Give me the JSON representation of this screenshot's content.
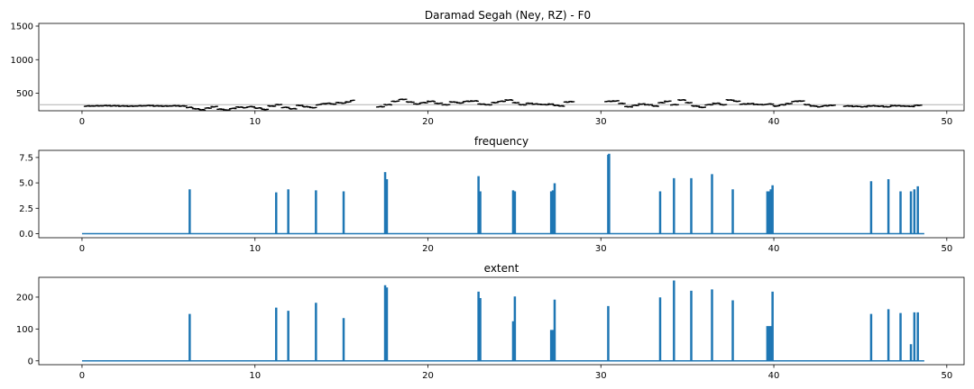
{
  "chart_data": [
    {
      "type": "scatter",
      "title": "Daramad Segah (Ney, RZ) - F0",
      "xlabel": "",
      "ylabel": "",
      "xlim": [
        -2.5,
        51
      ],
      "ylim": [
        240,
        1540
      ],
      "xticks": [
        0,
        10,
        20,
        30,
        40,
        50
      ],
      "yticks": [
        500,
        1000,
        1500
      ],
      "reference_line": 330,
      "colors": {
        "points": "#000000",
        "reference_line": "#b0b0b0"
      },
      "segments": [
        {
          "x_start": 0.1,
          "x_end": 6.0,
          "values": [
            310,
            312,
            315,
            313,
            310,
            308,
            312,
            316,
            311,
            309,
            313,
            310
          ]
        },
        {
          "x_start": 6.0,
          "x_end": 9.5,
          "values": [
            290,
            270,
            255,
            280,
            300,
            265,
            250,
            275,
            295,
            285
          ]
        },
        {
          "x_start": 9.5,
          "x_end": 13.5,
          "values": [
            300,
            280,
            260,
            310,
            330,
            290,
            270,
            320,
            300,
            285
          ]
        },
        {
          "x_start": 13.5,
          "x_end": 15.7,
          "values": [
            330,
            345,
            350,
            340,
            360,
            355,
            370,
            395
          ]
        },
        {
          "x_start": 17.0,
          "x_end": 22.0,
          "values": [
            300,
            330,
            380,
            410,
            370,
            340,
            360,
            380,
            350,
            330,
            370,
            355
          ]
        },
        {
          "x_start": 22.0,
          "x_end": 26.0,
          "values": [
            380,
            385,
            340,
            330,
            360,
            380,
            400,
            360,
            330,
            350
          ]
        },
        {
          "x_start": 26.0,
          "x_end": 28.4,
          "values": [
            340,
            335,
            330,
            340,
            320,
            310,
            370,
            375
          ]
        },
        {
          "x_start": 30.2,
          "x_end": 34.0,
          "values": [
            380,
            385,
            350,
            300,
            320,
            340,
            330,
            310,
            360,
            380
          ]
        },
        {
          "x_start": 34.0,
          "x_end": 38.0,
          "values": [
            330,
            400,
            360,
            310,
            290,
            330,
            350,
            330,
            400,
            380
          ]
        },
        {
          "x_start": 38.0,
          "x_end": 41.0,
          "values": [
            340,
            345,
            335,
            330,
            340,
            310,
            330,
            345
          ]
        },
        {
          "x_start": 41.0,
          "x_end": 43.5,
          "values": [
            380,
            385,
            330,
            310,
            300,
            315,
            320
          ]
        },
        {
          "x_start": 44.0,
          "x_end": 48.5,
          "values": [
            310,
            305,
            300,
            312,
            308,
            300,
            315,
            310,
            305,
            320
          ]
        }
      ]
    },
    {
      "type": "line",
      "title": "frequency",
      "xlabel": "",
      "ylabel": "",
      "xlim": [
        -2.5,
        51
      ],
      "ylim": [
        -0.4,
        8.2
      ],
      "xticks": [
        0,
        10,
        20,
        30,
        40,
        50
      ],
      "yticks": [
        0.0,
        2.5,
        5.0,
        7.5
      ],
      "ytick_labels": [
        "0.0",
        "2.5",
        "5.0",
        "7.5"
      ],
      "baseline": 0,
      "x_end": 48.7,
      "color": "#1f77b4",
      "peaks": [
        {
          "x": 6.2,
          "value": 4.3
        },
        {
          "x": 11.2,
          "value": 4.0
        },
        {
          "x": 11.9,
          "value": 4.3
        },
        {
          "x": 13.5,
          "value": 4.2
        },
        {
          "x": 15.1,
          "value": 4.1
        },
        {
          "x": 17.5,
          "value": 6.0
        },
        {
          "x": 17.6,
          "value": 5.3
        },
        {
          "x": 22.9,
          "value": 5.6
        },
        {
          "x": 23.0,
          "value": 4.1
        },
        {
          "x": 24.9,
          "value": 4.2
        },
        {
          "x": 25.0,
          "value": 4.1
        },
        {
          "x": 27.1,
          "value": 4.1
        },
        {
          "x": 27.2,
          "value": 4.2
        },
        {
          "x": 27.3,
          "value": 4.9
        },
        {
          "x": 30.4,
          "value": 7.7
        },
        {
          "x": 30.45,
          "value": 7.8
        },
        {
          "x": 33.4,
          "value": 4.1
        },
        {
          "x": 34.2,
          "value": 5.4
        },
        {
          "x": 35.2,
          "value": 5.4
        },
        {
          "x": 36.4,
          "value": 5.8
        },
        {
          "x": 37.6,
          "value": 4.3
        },
        {
          "x": 39.6,
          "value": 4.1
        },
        {
          "x": 39.7,
          "value": 4.1
        },
        {
          "x": 39.8,
          "value": 4.3
        },
        {
          "x": 39.9,
          "value": 4.7
        },
        {
          "x": 45.6,
          "value": 5.1
        },
        {
          "x": 46.6,
          "value": 5.3
        },
        {
          "x": 47.3,
          "value": 4.1
        },
        {
          "x": 47.9,
          "value": 4.1
        },
        {
          "x": 48.1,
          "value": 4.3
        },
        {
          "x": 48.3,
          "value": 4.6
        }
      ]
    },
    {
      "type": "line",
      "title": "extent",
      "xlabel": "",
      "ylabel": "",
      "xlim": [
        -2.5,
        51
      ],
      "ylim": [
        -12,
        262
      ],
      "xticks": [
        0,
        10,
        20,
        30,
        40,
        50
      ],
      "yticks": [
        0,
        100,
        200
      ],
      "ytick_labels": [
        "0",
        "100",
        "200"
      ],
      "baseline": 0,
      "x_end": 48.7,
      "color": "#1f77b4",
      "peaks": [
        {
          "x": 6.2,
          "value": 145
        },
        {
          "x": 11.2,
          "value": 165
        },
        {
          "x": 11.9,
          "value": 155
        },
        {
          "x": 13.5,
          "value": 180
        },
        {
          "x": 15.1,
          "value": 132
        },
        {
          "x": 17.5,
          "value": 235
        },
        {
          "x": 17.6,
          "value": 228
        },
        {
          "x": 22.9,
          "value": 215
        },
        {
          "x": 23.0,
          "value": 195
        },
        {
          "x": 24.9,
          "value": 122
        },
        {
          "x": 25.0,
          "value": 200
        },
        {
          "x": 27.1,
          "value": 95
        },
        {
          "x": 27.2,
          "value": 95
        },
        {
          "x": 27.3,
          "value": 190
        },
        {
          "x": 30.4,
          "value": 170
        },
        {
          "x": 33.4,
          "value": 197
        },
        {
          "x": 34.2,
          "value": 250
        },
        {
          "x": 35.2,
          "value": 218
        },
        {
          "x": 36.4,
          "value": 222
        },
        {
          "x": 37.6,
          "value": 188
        },
        {
          "x": 39.6,
          "value": 107
        },
        {
          "x": 39.7,
          "value": 107
        },
        {
          "x": 39.8,
          "value": 107
        },
        {
          "x": 39.9,
          "value": 215
        },
        {
          "x": 45.6,
          "value": 145
        },
        {
          "x": 46.6,
          "value": 160
        },
        {
          "x": 47.3,
          "value": 148
        },
        {
          "x": 47.9,
          "value": 50
        },
        {
          "x": 48.1,
          "value": 150
        },
        {
          "x": 48.3,
          "value": 150
        }
      ]
    }
  ]
}
